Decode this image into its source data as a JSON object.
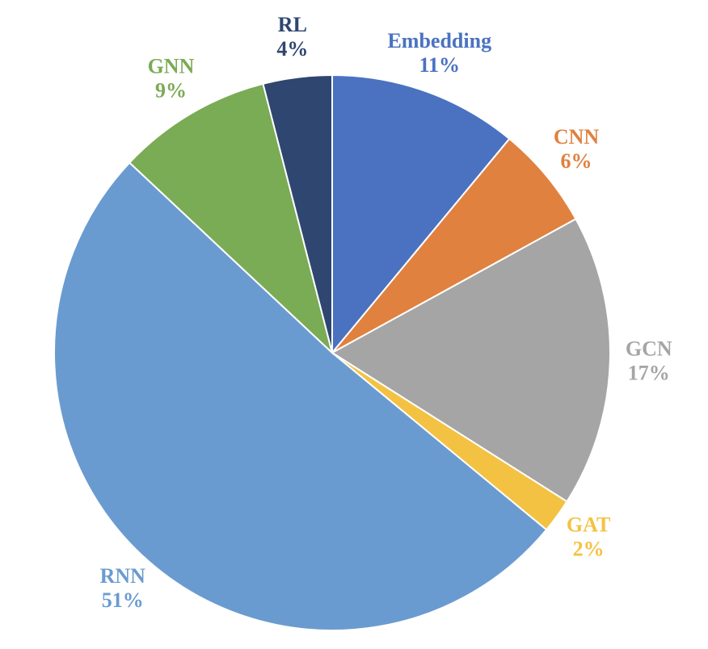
{
  "chart_data": {
    "type": "pie",
    "categories": [
      "Embedding",
      "CNN",
      "GCN",
      "GAT",
      "RNN",
      "GNN",
      "RL"
    ],
    "values": [
      11,
      6,
      17,
      2,
      51,
      9,
      4
    ],
    "value_labels": [
      "11%",
      "6%",
      "17%",
      "2%",
      "51%",
      "9%",
      "4%"
    ],
    "colors": [
      "#4a72c0",
      "#e0813f",
      "#a5a5a5",
      "#f4c242",
      "#6a9bd0",
      "#7aab55",
      "#2f4670"
    ]
  }
}
